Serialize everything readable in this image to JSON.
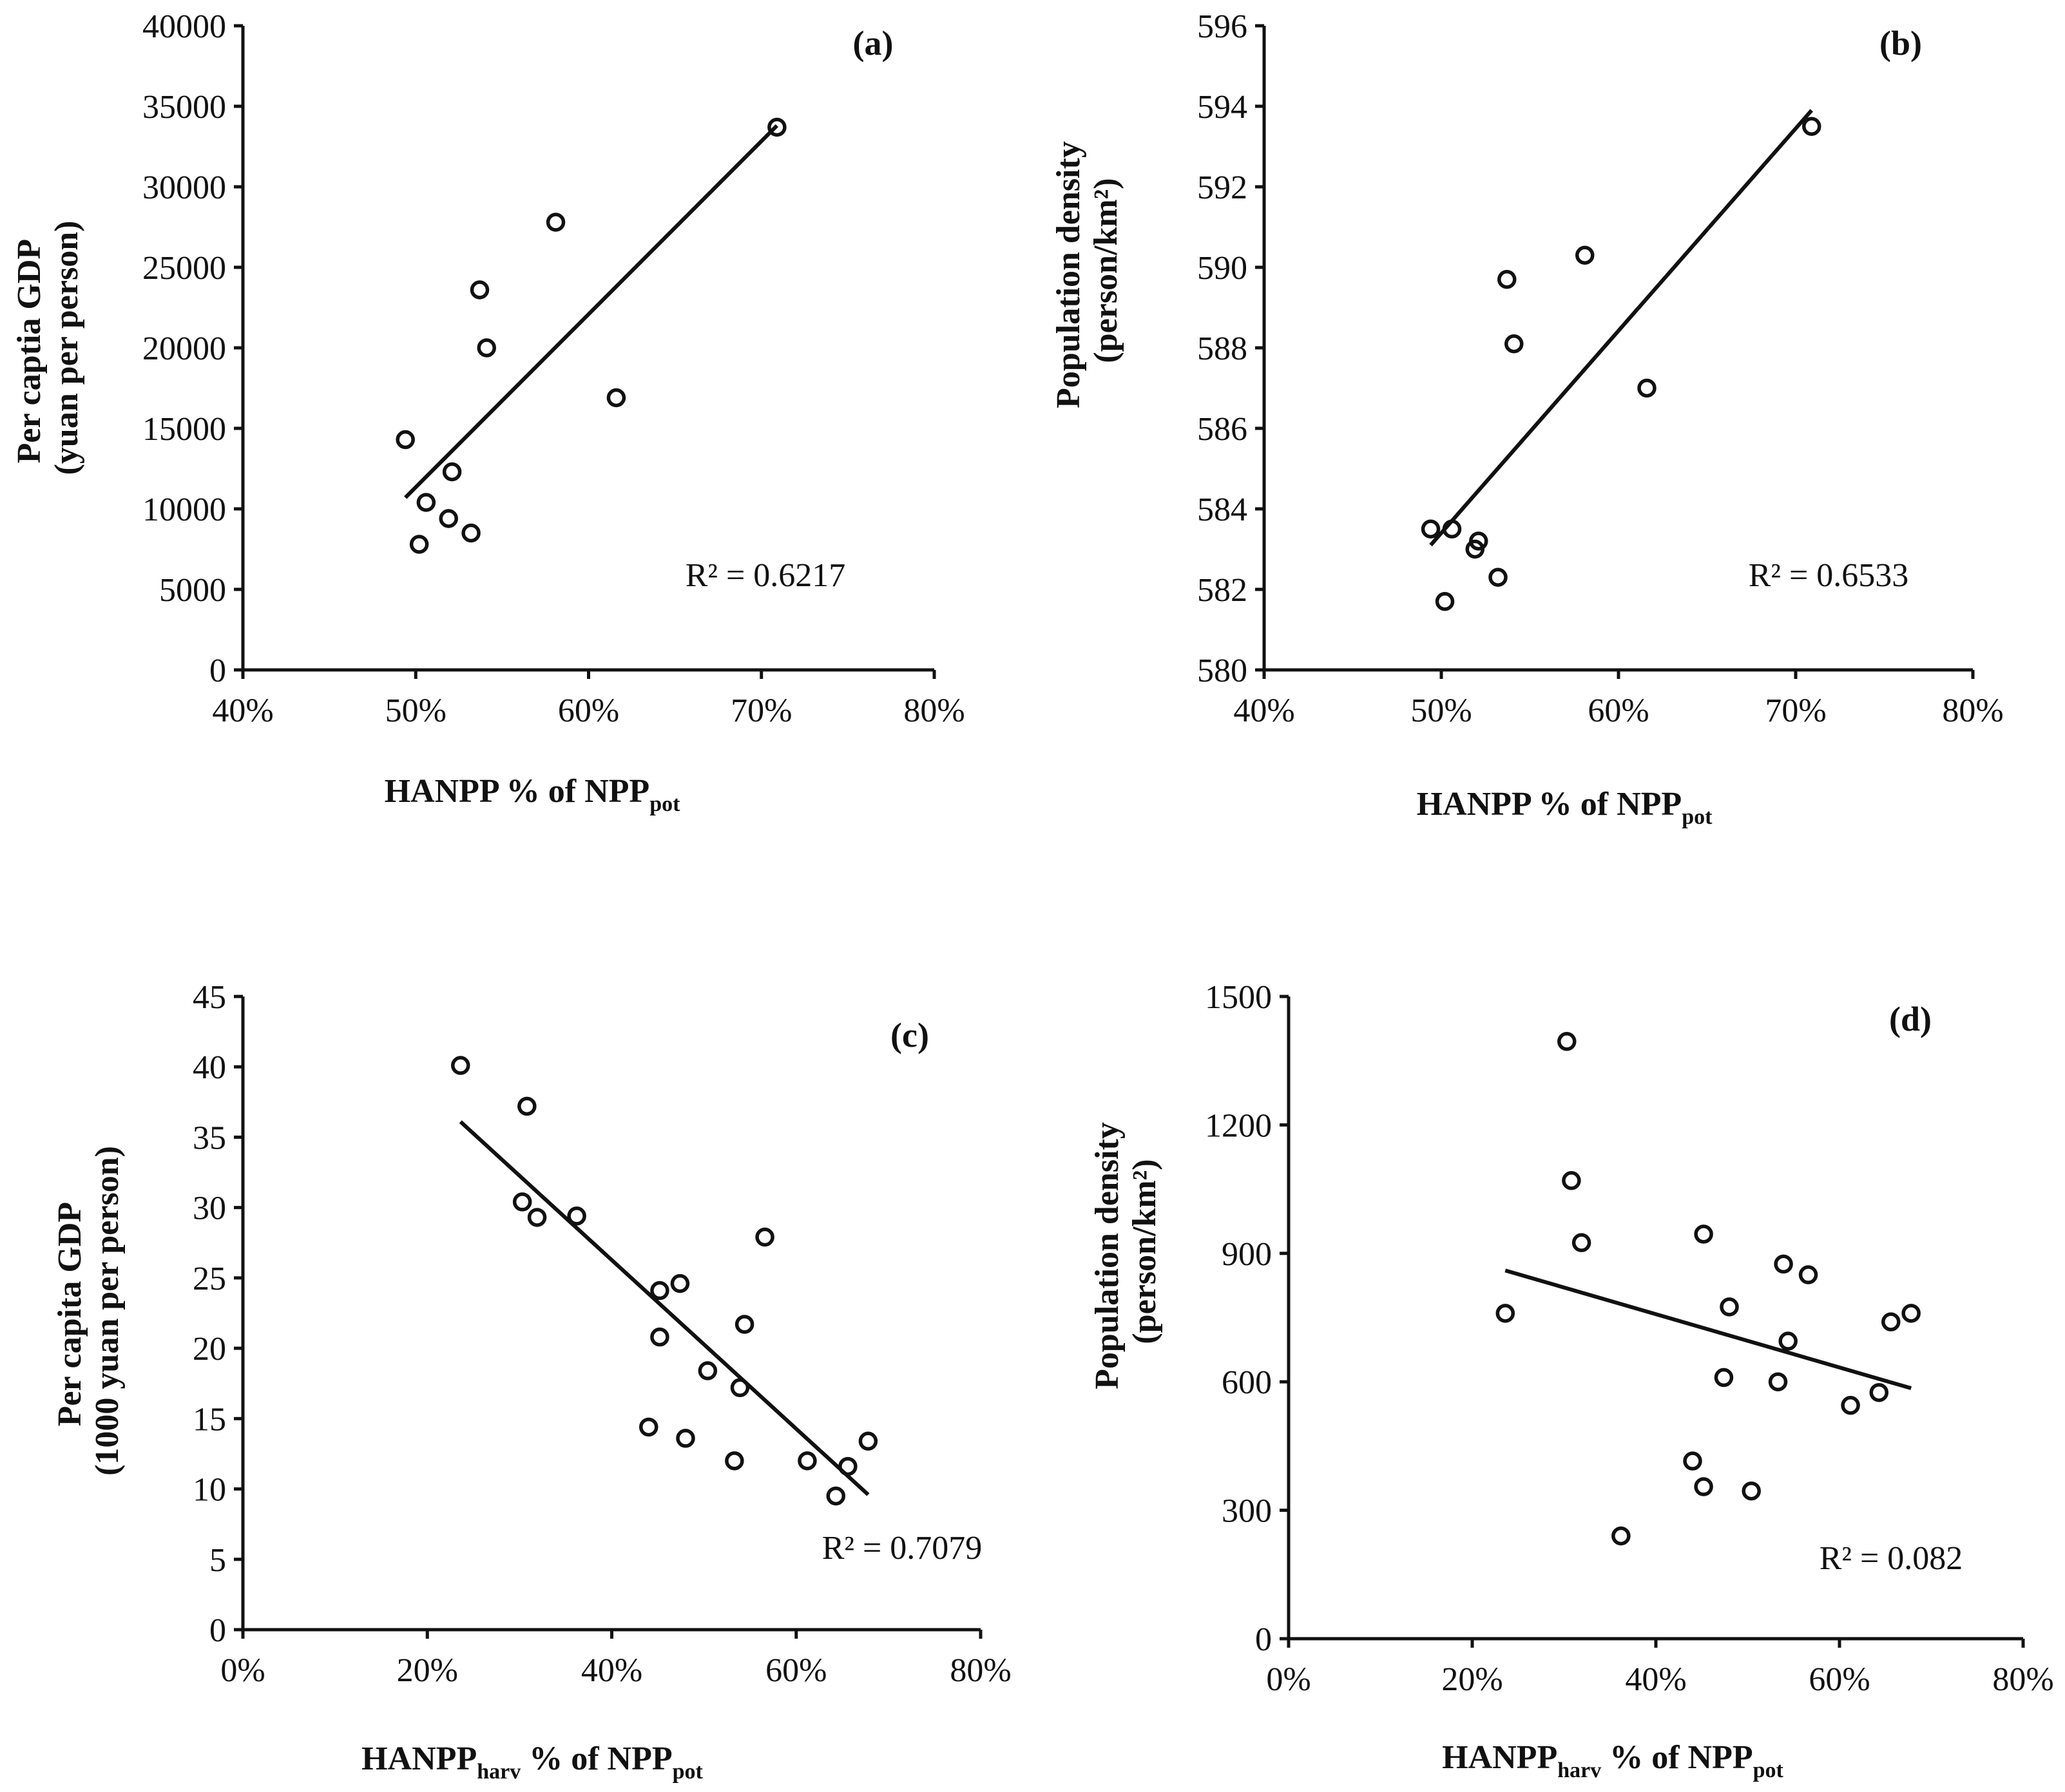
{
  "chart_data": [
    {
      "panel": "(a)",
      "type": "scatter",
      "xlabel": {
        "main": "HANPP  %  of  NPP",
        "sub": "pot"
      },
      "ylabel": [
        "Per captia GDP",
        "(yuan per person)"
      ],
      "xlim": [
        0.4,
        0.8
      ],
      "ylim": [
        0,
        40000
      ],
      "xticks": [
        0.4,
        0.5,
        0.6,
        0.7,
        0.8
      ],
      "xtick_labels": [
        "40%",
        "50%",
        "60%",
        "70%",
        "80%"
      ],
      "yticks": [
        0,
        5000,
        10000,
        15000,
        20000,
        25000,
        30000,
        35000,
        40000
      ],
      "ytick_labels": [
        "0",
        "5000",
        "10000",
        "15000",
        "20000",
        "25000",
        "30000",
        "35000",
        "40000"
      ],
      "points": [
        [
          0.494,
          14300
        ],
        [
          0.502,
          7800
        ],
        [
          0.506,
          10400
        ],
        [
          0.519,
          9400
        ],
        [
          0.521,
          12300
        ],
        [
          0.532,
          8500
        ],
        [
          0.537,
          23600
        ],
        [
          0.541,
          20000
        ],
        [
          0.581,
          27800
        ],
        [
          0.616,
          16900
        ],
        [
          0.709,
          33700
        ]
      ],
      "trendline": [
        [
          0.494,
          10700
        ],
        [
          0.709,
          33800
        ]
      ],
      "r2": "R² = 0.6217"
    },
    {
      "panel": "(b)",
      "type": "scatter",
      "xlabel": {
        "main": "HANPP % of  NPP",
        "sub": "pot"
      },
      "ylabel": [
        "Population density",
        "(person/km²)"
      ],
      "xlim": [
        0.4,
        0.8
      ],
      "ylim": [
        580,
        596
      ],
      "xticks": [
        0.4,
        0.5,
        0.6,
        0.7,
        0.8
      ],
      "xtick_labels": [
        "40%",
        "50%",
        "60%",
        "70%",
        "80%"
      ],
      "yticks": [
        580,
        582,
        584,
        586,
        588,
        590,
        592,
        594,
        596
      ],
      "ytick_labels": [
        "580",
        "582",
        "584",
        "586",
        "588",
        "590",
        "592",
        "594",
        "596"
      ],
      "points": [
        [
          0.494,
          583.5
        ],
        [
          0.502,
          581.7
        ],
        [
          0.506,
          583.5
        ],
        [
          0.519,
          583.0
        ],
        [
          0.521,
          583.2
        ],
        [
          0.532,
          582.3
        ],
        [
          0.537,
          589.7
        ],
        [
          0.541,
          588.1
        ],
        [
          0.581,
          590.3
        ],
        [
          0.616,
          587.0
        ],
        [
          0.709,
          593.5
        ]
      ],
      "trendline": [
        [
          0.494,
          583.1
        ],
        [
          0.709,
          593.9
        ]
      ],
      "r2": "R² = 0.6533"
    },
    {
      "panel": "(c)",
      "type": "scatter",
      "xlabel": {
        "main": "HANPP",
        "main_sub": "harv",
        "rest": " % of NPP",
        "sub": "pot"
      },
      "ylabel": [
        "Per capita GDP",
        "(1000 yuan per person)"
      ],
      "xlim": [
        0,
        0.8
      ],
      "ylim": [
        0,
        45
      ],
      "xticks": [
        0,
        0.2,
        0.4,
        0.6,
        0.8
      ],
      "xtick_labels": [
        "0%",
        "20%",
        "40%",
        "60%",
        "80%"
      ],
      "yticks": [
        0,
        5,
        10,
        15,
        20,
        25,
        30,
        35,
        40,
        45
      ],
      "ytick_labels": [
        "0",
        "5",
        "10",
        "15",
        "20",
        "25",
        "30",
        "35",
        "40",
        "45"
      ],
      "points": [
        [
          0.236,
          40.1
        ],
        [
          0.303,
          30.4
        ],
        [
          0.308,
          37.2
        ],
        [
          0.319,
          29.3
        ],
        [
          0.362,
          29.4
        ],
        [
          0.44,
          14.4
        ],
        [
          0.452,
          24.1
        ],
        [
          0.452,
          20.8
        ],
        [
          0.474,
          24.6
        ],
        [
          0.48,
          13.6
        ],
        [
          0.504,
          18.4
        ],
        [
          0.533,
          12.0
        ],
        [
          0.539,
          17.2
        ],
        [
          0.544,
          21.7
        ],
        [
          0.566,
          27.9
        ],
        [
          0.612,
          12.0
        ],
        [
          0.643,
          9.5
        ],
        [
          0.656,
          11.6
        ],
        [
          0.678,
          13.4
        ]
      ],
      "trendline": [
        [
          0.236,
          36.1
        ],
        [
          0.678,
          9.6
        ]
      ],
      "r2": "R² = 0.7079"
    },
    {
      "panel": "(d)",
      "type": "scatter",
      "xlabel": {
        "main": "HANPP",
        "main_sub": "harv",
        "rest": " % of NPP",
        "sub": "pot"
      },
      "ylabel": [
        "Population density",
        "(person/km²)"
      ],
      "xlim": [
        0,
        0.8
      ],
      "ylim": [
        0,
        1500
      ],
      "xticks": [
        0,
        0.2,
        0.4,
        0.6,
        0.8
      ],
      "xtick_labels": [
        "0%",
        "20%",
        "40%",
        "60%",
        "80%"
      ],
      "yticks": [
        0,
        300,
        600,
        900,
        1200,
        1500
      ],
      "ytick_labels": [
        "0",
        "300",
        "600",
        "900",
        "1200",
        "1500"
      ],
      "points": [
        [
          0.236,
          760
        ],
        [
          0.303,
          1395
        ],
        [
          0.308,
          1070
        ],
        [
          0.319,
          925
        ],
        [
          0.362,
          240
        ],
        [
          0.44,
          415
        ],
        [
          0.452,
          945
        ],
        [
          0.452,
          355
        ],
        [
          0.474,
          610
        ],
        [
          0.48,
          775
        ],
        [
          0.504,
          345
        ],
        [
          0.533,
          600
        ],
        [
          0.539,
          875
        ],
        [
          0.544,
          695
        ],
        [
          0.566,
          850
        ],
        [
          0.612,
          545
        ],
        [
          0.643,
          575
        ],
        [
          0.656,
          740
        ],
        [
          0.678,
          760
        ]
      ],
      "trendline": [
        [
          0.236,
          860
        ],
        [
          0.678,
          585
        ]
      ],
      "r2": "R² = 0.082"
    }
  ]
}
